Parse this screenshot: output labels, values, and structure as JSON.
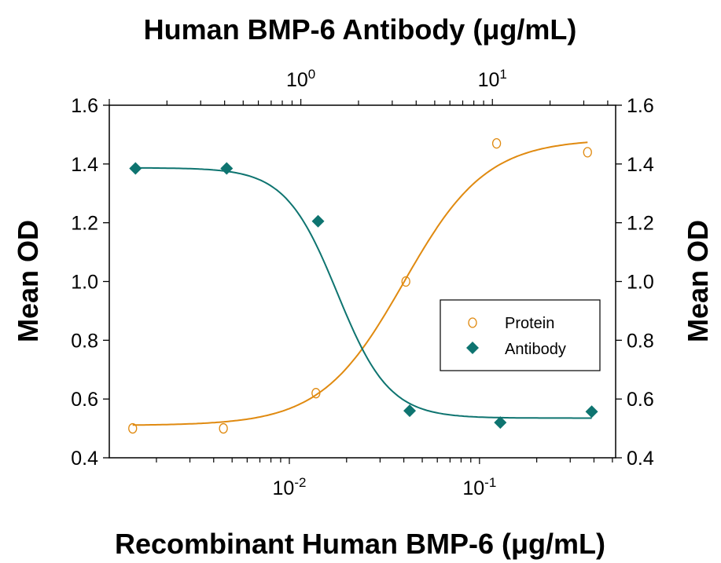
{
  "chart_data": {
    "type": "scatter",
    "title": "Human BMP-6 Antibody (μg/mL)",
    "xlabel": "Recombinant Human BMP-6 (μg/mL)",
    "ylabel": "Mean OD",
    "ylabel_right": "Mean OD",
    "x_scale": "log",
    "xlim": [
      0.00113,
      0.52
    ],
    "x_top_scale": "log",
    "x_top_lim": [
      0.1,
      44
    ],
    "ylim": [
      0.4,
      1.6
    ],
    "grid": false,
    "legend_position": "center-right",
    "y_ticks": [
      "0.4",
      "0.6",
      "0.8",
      "1.0",
      "1.2",
      "1.4",
      "1.6"
    ],
    "x_ticks": [
      {
        "base": "10",
        "exp": "-2",
        "value": 0.01
      },
      {
        "base": "10",
        "exp": "-1",
        "value": 0.1
      }
    ],
    "x_top_ticks": [
      {
        "base": "10",
        "exp": "0",
        "value": 1
      },
      {
        "base": "10",
        "exp": "1",
        "value": 10
      }
    ],
    "series": [
      {
        "name": "Protein",
        "axis": "bottom",
        "marker": "open-circle",
        "color": "#E08A10",
        "x": [
          0.0015,
          0.0045,
          0.0138,
          0.041,
          0.123,
          0.37
        ],
        "y": [
          0.5,
          0.5,
          0.62,
          1.0,
          1.47,
          1.44
        ],
        "fit": {
          "bottom": 0.51,
          "top": 1.485,
          "ec50": 0.04,
          "hill": 2.0
        }
      },
      {
        "name": "Antibody",
        "axis": "top",
        "marker": "filled-diamond",
        "color": "#0E7470",
        "x": [
          0.137,
          0.41,
          1.23,
          3.7,
          11,
          33
        ],
        "y": [
          1.385,
          1.385,
          1.205,
          0.56,
          0.52,
          0.557
        ],
        "fit": {
          "bottom": 0.535,
          "top": 1.387,
          "ec50": 1.55,
          "hill": 3.2
        }
      }
    ]
  }
}
